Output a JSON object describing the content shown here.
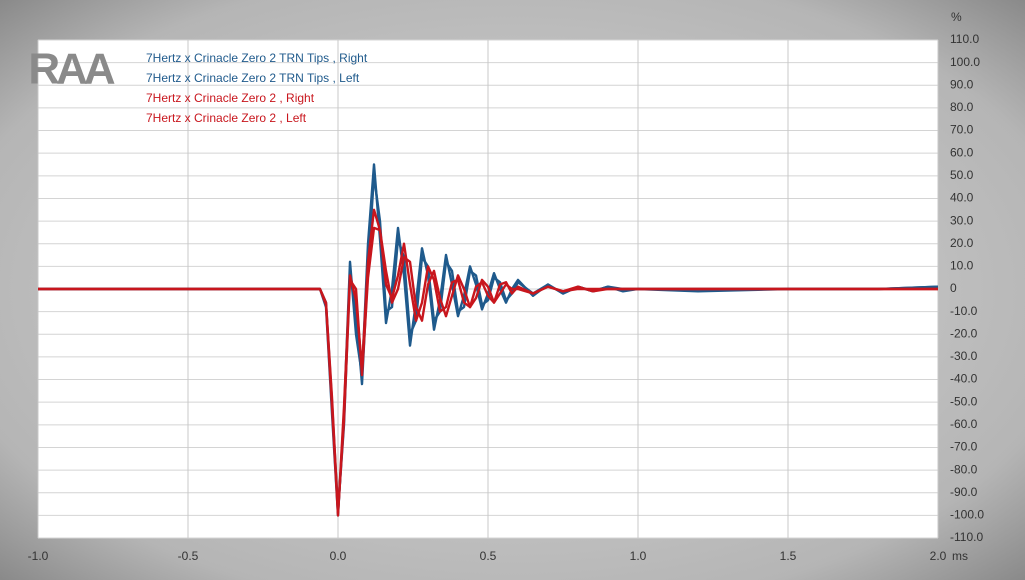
{
  "chart_data": {
    "type": "line",
    "watermark": "RAA",
    "y_unit": "%",
    "x_unit": "ms",
    "x": [
      -1.0,
      -0.06,
      -0.04,
      -0.02,
      0.0,
      0.02,
      0.04,
      0.06,
      0.08,
      0.1,
      0.12,
      0.14,
      0.16,
      0.18,
      0.2,
      0.22,
      0.24,
      0.26,
      0.28,
      0.3,
      0.32,
      0.34,
      0.36,
      0.38,
      0.4,
      0.42,
      0.44,
      0.46,
      0.48,
      0.5,
      0.52,
      0.54,
      0.56,
      0.58,
      0.6,
      0.65,
      0.7,
      0.75,
      0.8,
      0.85,
      0.9,
      0.95,
      1.0,
      1.2,
      1.5,
      1.8,
      2.0
    ],
    "series": [
      {
        "name": "7Hertz x Crinacle Zero 2 TRN Tips , Right",
        "color": "#1f5a8c",
        "values": [
          0,
          0,
          -8,
          -55,
          -100,
          -55,
          12,
          -20,
          -38,
          20,
          55,
          22,
          -15,
          0,
          27,
          6,
          -25,
          -6,
          18,
          6,
          -18,
          -5,
          15,
          2,
          -12,
          -3,
          10,
          2,
          -9,
          -2,
          7,
          0,
          -6,
          0,
          4,
          -3,
          2,
          -2,
          1,
          -1,
          1,
          -1,
          0,
          -1,
          0,
          0,
          1
        ]
      },
      {
        "name": "7Hertz x Crinacle Zero 2 TRN Tips , Left",
        "color": "#1f5a8c",
        "values": [
          0,
          0,
          -6,
          -50,
          -98,
          -60,
          8,
          -10,
          -42,
          10,
          50,
          30,
          -10,
          -8,
          22,
          14,
          -20,
          -14,
          14,
          10,
          -14,
          -10,
          12,
          8,
          -10,
          -8,
          8,
          6,
          -7,
          -5,
          5,
          3,
          -5,
          -2,
          3,
          -2,
          2,
          -2,
          1,
          -1,
          1,
          0,
          0,
          0,
          0,
          0,
          1
        ]
      },
      {
        "name": "7Hertz x Crinacle Zero 2 , Right",
        "color": "#c8161d",
        "values": [
          0,
          0,
          -7,
          -52,
          -100,
          -52,
          6,
          -5,
          -35,
          12,
          35,
          26,
          2,
          -4,
          6,
          20,
          2,
          -14,
          -6,
          10,
          4,
          -10,
          -8,
          3,
          4,
          -6,
          -8,
          1,
          3,
          -3,
          -6,
          2,
          3,
          -2,
          1,
          -2,
          1,
          -1,
          1,
          -1,
          0,
          0,
          0,
          0,
          0,
          0,
          0
        ]
      },
      {
        "name": "7Hertz x Crinacle Zero 2 , Left",
        "color": "#c8161d",
        "values": [
          0,
          0,
          -6,
          -48,
          -99,
          -58,
          4,
          0,
          -38,
          5,
          27,
          26,
          8,
          -6,
          0,
          14,
          12,
          -8,
          -14,
          2,
          8,
          -4,
          -12,
          -3,
          6,
          0,
          -8,
          -4,
          4,
          1,
          -6,
          -2,
          2,
          0,
          0,
          -2,
          1,
          -1,
          0,
          0,
          0,
          0,
          0,
          0,
          0,
          0,
          0
        ]
      }
    ],
    "xlim": [
      -1.0,
      2.0
    ],
    "xticks": [
      {
        "value": -1.0,
        "label": "-1.0"
      },
      -0.5,
      {
        "value": 0,
        "label": "0.0"
      },
      0.5,
      {
        "value": 1,
        "label": "1.0"
      },
      1.5,
      {
        "value": 2,
        "label": "2.0"
      }
    ],
    "ylim": [
      -110,
      110
    ],
    "yticks": [
      {
        "value": 110,
        "label": "110.0"
      },
      {
        "value": 100,
        "label": "100.0"
      },
      {
        "value": 90,
        "label": "90.0"
      },
      {
        "value": 80,
        "label": "80.0"
      },
      {
        "value": 70,
        "label": "70.0"
      },
      {
        "value": 60,
        "label": "60.0"
      },
      {
        "value": 50,
        "label": "50.0"
      },
      {
        "value": 40,
        "label": "40.0"
      },
      {
        "value": 30,
        "label": "30.0"
      },
      {
        "value": 20,
        "label": "20.0"
      },
      {
        "value": 10,
        "label": "10.0"
      },
      0,
      {
        "value": -10,
        "label": "-10.0"
      },
      {
        "value": -20,
        "label": "-20.0"
      },
      {
        "value": -30,
        "label": "-30.0"
      },
      {
        "value": -40,
        "label": "-40.0"
      },
      {
        "value": -50,
        "label": "-50.0"
      },
      {
        "value": -60,
        "label": "-60.0"
      },
      {
        "value": -70,
        "label": "-70.0"
      },
      {
        "value": -80,
        "label": "-80.0"
      },
      {
        "value": -90,
        "label": "-90.0"
      },
      {
        "value": -100,
        "label": "-100.0"
      },
      {
        "value": -110,
        "label": "-110.0"
      }
    ],
    "grid": true
  }
}
